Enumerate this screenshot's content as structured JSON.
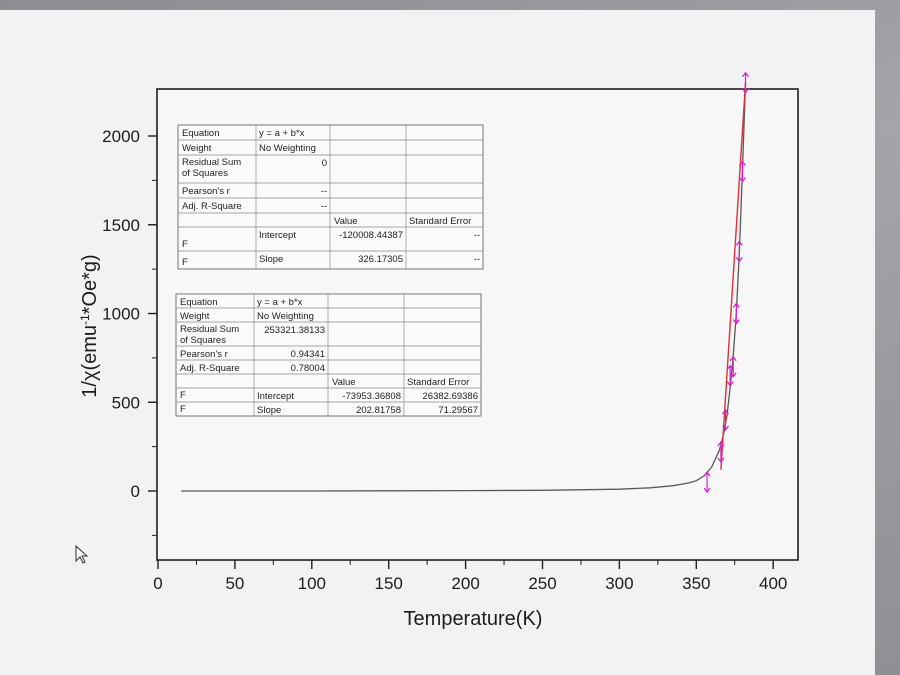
{
  "chart_data": {
    "type": "scatter",
    "xlabel": "Temperature(K)",
    "ylabel_main": "1/χ(emu",
    "ylabel_sup": "-1",
    "ylabel_tail": "*Oe*g)",
    "xlim": [
      0,
      410
    ],
    "ylim": [
      -400,
      2270
    ],
    "xticks": [
      0,
      50,
      100,
      150,
      200,
      250,
      300,
      350,
      400
    ],
    "yticks": [
      0,
      500,
      1000,
      1500,
      2000
    ],
    "series": [
      {
        "style": "dark-gray curve",
        "x": [
          15,
          100,
          200,
          250,
          300,
          320,
          335,
          345,
          350,
          355,
          360,
          365,
          368,
          370,
          372,
          374,
          376,
          378,
          380,
          382
        ],
        "y": [
          0,
          0,
          2,
          4,
          10,
          18,
          30,
          45,
          58,
          85,
          135,
          230,
          330,
          430,
          580,
          760,
          1000,
          1350,
          1800,
          2300
        ]
      },
      {
        "style": "magenta markers with error bars",
        "x": [
          357,
          366,
          369,
          372,
          374,
          376,
          378,
          380,
          382
        ],
        "y": [
          50,
          220,
          400,
          650,
          700,
          1000,
          1350,
          1800,
          2300
        ]
      },
      {
        "style": "red linear fit",
        "x": [
          366,
          382
        ],
        "y": [
          120,
          2300
        ]
      }
    ],
    "tables": [
      {
        "rows": [
          {
            "label": "Equation",
            "value": "y = a + b*x"
          },
          {
            "label": "Weight",
            "value": "No Weighting"
          },
          {
            "label": "Residual Sum of Squares",
            "label_lines": [
              "Residual Sum",
              "of Squares"
            ],
            "value": "0"
          },
          {
            "label": "Pearson's r",
            "value": "--"
          },
          {
            "label": "Adj. R-Square",
            "value": "--"
          }
        ],
        "header": {
          "value": "Value",
          "error": "Standard Error"
        },
        "params": [
          {
            "tag": "F",
            "name": "Intercept",
            "value": "-120008.44387",
            "error": "--"
          },
          {
            "tag": "F",
            "name": "Slope",
            "value": "326.17305",
            "error": "--"
          }
        ]
      },
      {
        "rows": [
          {
            "label": "Equation",
            "value": "y = a + b*x"
          },
          {
            "label": "Weight",
            "value": "No Weighting"
          },
          {
            "label": "Residual Sum of Squares",
            "label_lines": [
              "Residual Sum",
              "of Squares"
            ],
            "value": "253321.38133"
          },
          {
            "label": "Pearson's r",
            "value": "0.94341"
          },
          {
            "label": "Adj. R-Square",
            "value": "0.78004"
          }
        ],
        "header": {
          "value": "Value",
          "error": "Standard Error"
        },
        "params": [
          {
            "tag": "F",
            "name": "Intercept",
            "value": "-73953.36808",
            "error": "26382.69386"
          },
          {
            "tag": "F",
            "name": "Slope",
            "value": "202.81758",
            "error": "71.29567"
          }
        ]
      }
    ]
  },
  "colors": {
    "curve": "#555a5a",
    "markers": "#d21fc9",
    "fit": "#e0303a",
    "paper": "#f4f4f6",
    "frame": "#1e1e1e"
  },
  "cursor_icon": "mouse-pointer-icon"
}
